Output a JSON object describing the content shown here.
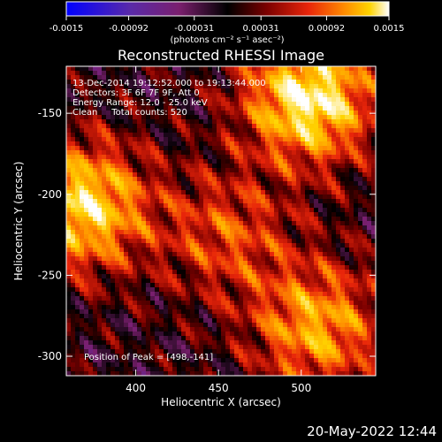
{
  "chart_data": {
    "type": "heatmap",
    "title": "Reconstructed RHESSI Image",
    "xlabel": "Heliocentric X (arcsec)",
    "ylabel": "Heliocentric Y (arcsec)",
    "xlim": [
      358,
      545
    ],
    "ylim": [
      -312,
      -121
    ],
    "x_ticks": [
      400,
      450,
      500
    ],
    "y_ticks": [
      -300,
      -250,
      -200,
      -150
    ],
    "colorbar": {
      "range": [
        -0.0015,
        0.0015
      ],
      "ticks": [
        "-0.0015",
        "-0.00092",
        "-0.00031",
        "0.00031",
        "0.00092",
        "0.0015"
      ],
      "label": "(photons cm⁻² s⁻¹ asec⁻²)",
      "colormap": [
        "#0000ff",
        "#5a2aa8",
        "#7a1f6e",
        "#000000",
        "#7a0000",
        "#e8250a",
        "#ff8a00",
        "#ffd400",
        "#ffffff"
      ]
    },
    "annotations": [
      "13-Dec-2014 19:12:52.000 to 19:13:44.000",
      "Detectors: 3F 6F 7F 9F, Att 0",
      "Energy Range: 12.0 - 25.0 keV",
      "Clean     Total counts: 520"
    ],
    "peak_label": "Position of Peak = [498,-141]",
    "peak_position": [
      498,
      -141
    ],
    "sources": [
      {
        "x": 505,
        "y": -141,
        "intensity": 1.0
      },
      {
        "x": 368,
        "y": -207,
        "intensity": 0.9
      },
      {
        "x": 510,
        "y": -282,
        "intensity": 0.7
      },
      {
        "x": 455,
        "y": -225,
        "intensity": 0.45
      }
    ]
  },
  "footer": {
    "date": "20-May-2022 12:44"
  }
}
